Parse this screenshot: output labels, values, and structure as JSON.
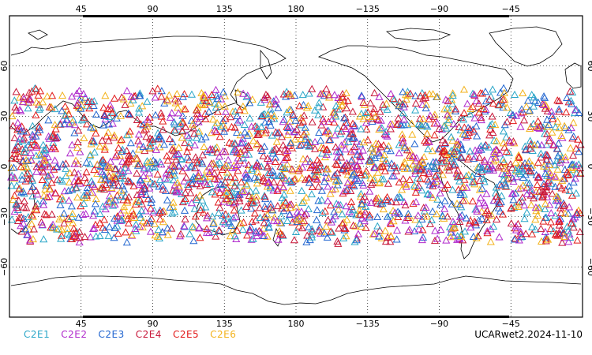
{
  "map": {
    "lon_min": 0,
    "lon_max": 360,
    "lat_min": -90,
    "lat_max": 90,
    "lon_ticks": [
      {
        "lon": 45,
        "label": "45"
      },
      {
        "lon": 90,
        "label": "90"
      },
      {
        "lon": 135,
        "label": "135"
      },
      {
        "lon": 180,
        "label": "180"
      },
      {
        "lon": 225,
        "label": "−135"
      },
      {
        "lon": 270,
        "label": "−90"
      },
      {
        "lon": 315,
        "label": "−45"
      }
    ],
    "lat_ticks": [
      {
        "lat": 60,
        "label": "60"
      },
      {
        "lat": 30,
        "label": "30"
      },
      {
        "lat": 0,
        "label": "0"
      },
      {
        "lat": -30,
        "label": "−30"
      },
      {
        "lat": -60,
        "label": "−60"
      }
    ],
    "grid": true,
    "observation_band_lat": [
      -45,
      45
    ]
  },
  "legend": [
    {
      "name": "C2E1",
      "color": "#2aa6c8"
    },
    {
      "name": "C2E2",
      "color": "#b02acc"
    },
    {
      "name": "C2E3",
      "color": "#2266d0"
    },
    {
      "name": "C2E4",
      "color": "#c8183a"
    },
    {
      "name": "C2E5",
      "color": "#e21a1a"
    },
    {
      "name": "C2E6",
      "color": "#f3b21a"
    }
  ],
  "source_label": "UCARwet2.2024-11-10"
}
